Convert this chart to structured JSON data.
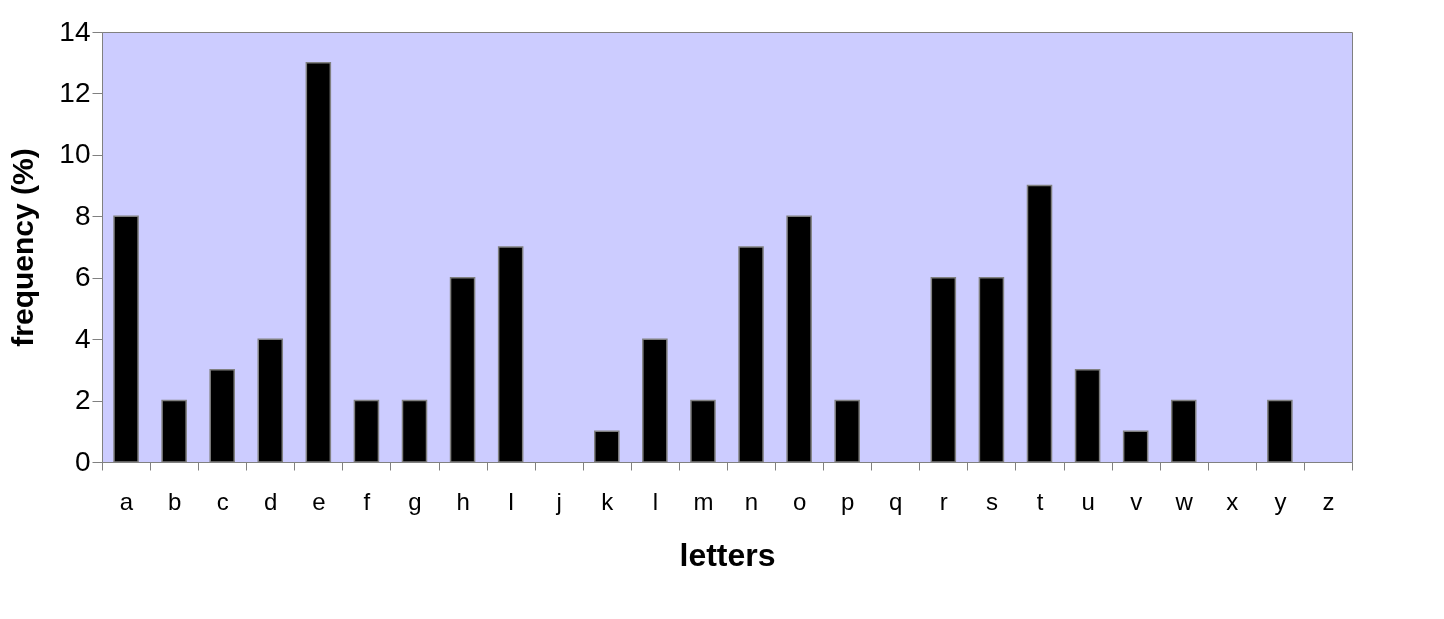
{
  "chart_data": {
    "type": "bar",
    "xlabel": "letters",
    "ylabel": "frequency (%)",
    "categories": [
      "a",
      "b",
      "c",
      "d",
      "e",
      "f",
      "g",
      "h",
      "I",
      "j",
      "k",
      "l",
      "m",
      "n",
      "o",
      "p",
      "q",
      "r",
      "s",
      "t",
      "u",
      "v",
      "w",
      "x",
      "y",
      "z"
    ],
    "values": [
      8,
      2,
      3,
      4,
      13,
      2,
      2,
      6,
      7,
      0,
      1,
      4,
      2,
      7,
      8,
      2,
      0,
      6,
      6,
      9,
      3,
      1,
      2,
      0,
      2,
      0
    ],
    "color": "#000000",
    "ylim": [
      0,
      14
    ],
    "yticks": [
      0,
      2,
      4,
      6,
      8,
      10,
      12,
      14
    ],
    "grid": false
  }
}
